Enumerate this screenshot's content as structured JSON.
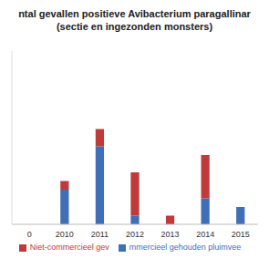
{
  "chart_data": {
    "type": "bar",
    "title": "ntal gevallen positieve Avibacterium paragallinar",
    "subtitle": "(sectie en ingezonden monsters)",
    "categories": [
      "0",
      "2010",
      "2011",
      "2012",
      "2013",
      "2014",
      "2015"
    ],
    "series": [
      {
        "name": "mmercieel gehouden pluimvee",
        "color": "#3f6fb6",
        "values": [
          0,
          4,
          9,
          1,
          0,
          3,
          2
        ]
      },
      {
        "name": "Niet-commercieel gev",
        "color": "#c0393b",
        "values": [
          0,
          1,
          2,
          5,
          1,
          5,
          0
        ]
      }
    ],
    "stacked": true,
    "ylim": [
      0,
      20
    ],
    "tick_labels": "x",
    "grid": false,
    "legend": "bottom"
  }
}
